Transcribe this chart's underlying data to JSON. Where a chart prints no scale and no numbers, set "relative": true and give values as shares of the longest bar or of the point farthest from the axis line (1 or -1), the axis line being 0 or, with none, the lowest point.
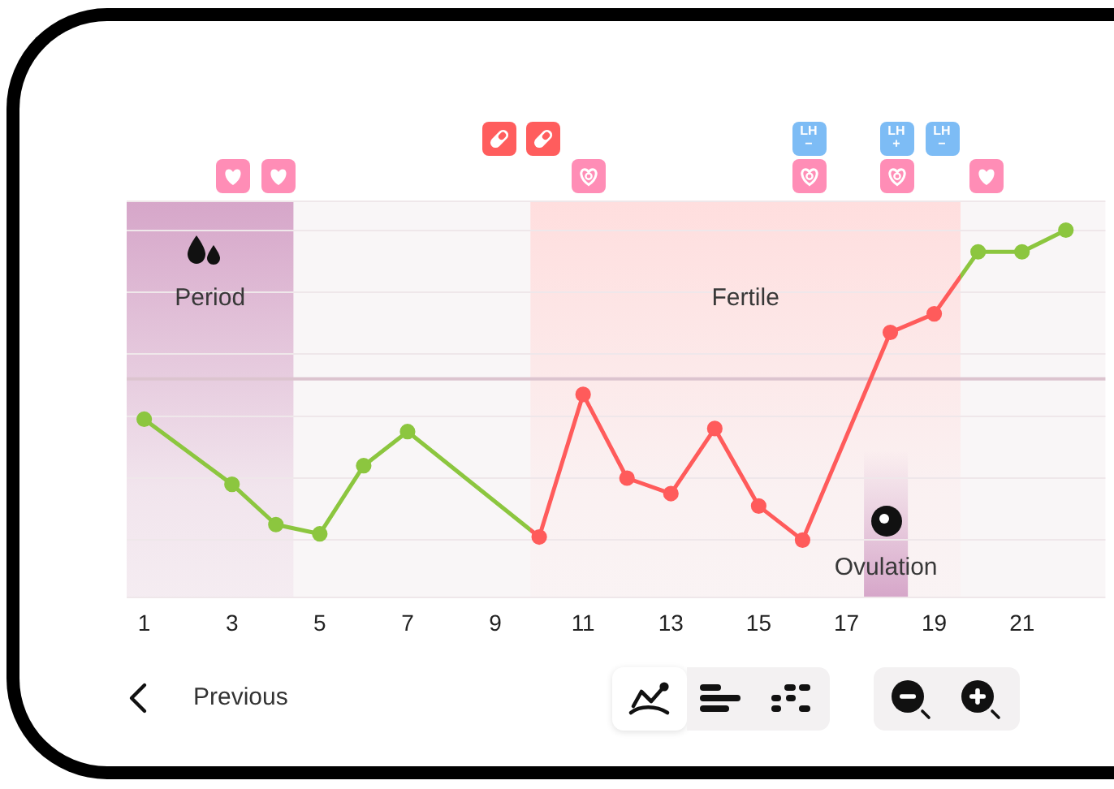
{
  "chart_data": {
    "type": "line",
    "relative": true,
    "x": [
      1,
      3,
      4,
      5,
      6,
      7,
      10,
      11,
      12,
      13,
      14,
      15,
      16,
      18,
      19,
      20,
      21,
      22
    ],
    "xlim": [
      0.6,
      22.9
    ],
    "xticks": [
      1,
      3,
      5,
      7,
      9,
      11,
      13,
      15,
      17,
      19,
      21
    ],
    "series": [
      {
        "colors": [
          "#8cc63f",
          "#8cc63f",
          "#8cc63f",
          "#8cc63f",
          "#8cc63f",
          "#8cc63f",
          "#ff5b5b",
          "#ff5b5b",
          "#ff5b5b",
          "#ff5b5b",
          "#ff5b5b",
          "#ff5b5b",
          "#ff5b5b",
          "#ff5b5b",
          "#ff5b5b",
          "#8cc63f",
          "#8cc63f",
          "#8cc63f"
        ],
        "values": [
          0.39,
          0.18,
          0.05,
          0.02,
          0.24,
          0.35,
          0.01,
          0.47,
          0.2,
          0.15,
          0.36,
          0.11,
          0,
          0.67,
          0.73,
          0.93,
          0.93,
          1
        ]
      }
    ],
    "bands": [
      {
        "axis": "x",
        "from": 0.6,
        "to": 4.4,
        "label": "Period",
        "color": "#d6a6c9"
      },
      {
        "axis": "x",
        "from": 9.8,
        "to": 19.6,
        "label": "Fertile",
        "color": "#ffdede"
      },
      {
        "axis": "x",
        "from": 17.4,
        "to": 18.4,
        "label": "Ovulation",
        "color": "#d6a6c9"
      }
    ],
    "ref_lines": [
      {
        "axis": "y",
        "value": 0.52,
        "color": "#dcc4cf"
      }
    ],
    "annotations": [
      "LH −",
      "LH +",
      "LH −",
      "Previous"
    ],
    "grid": "y",
    "marker": "circle",
    "line_style": "solid"
  }
}
